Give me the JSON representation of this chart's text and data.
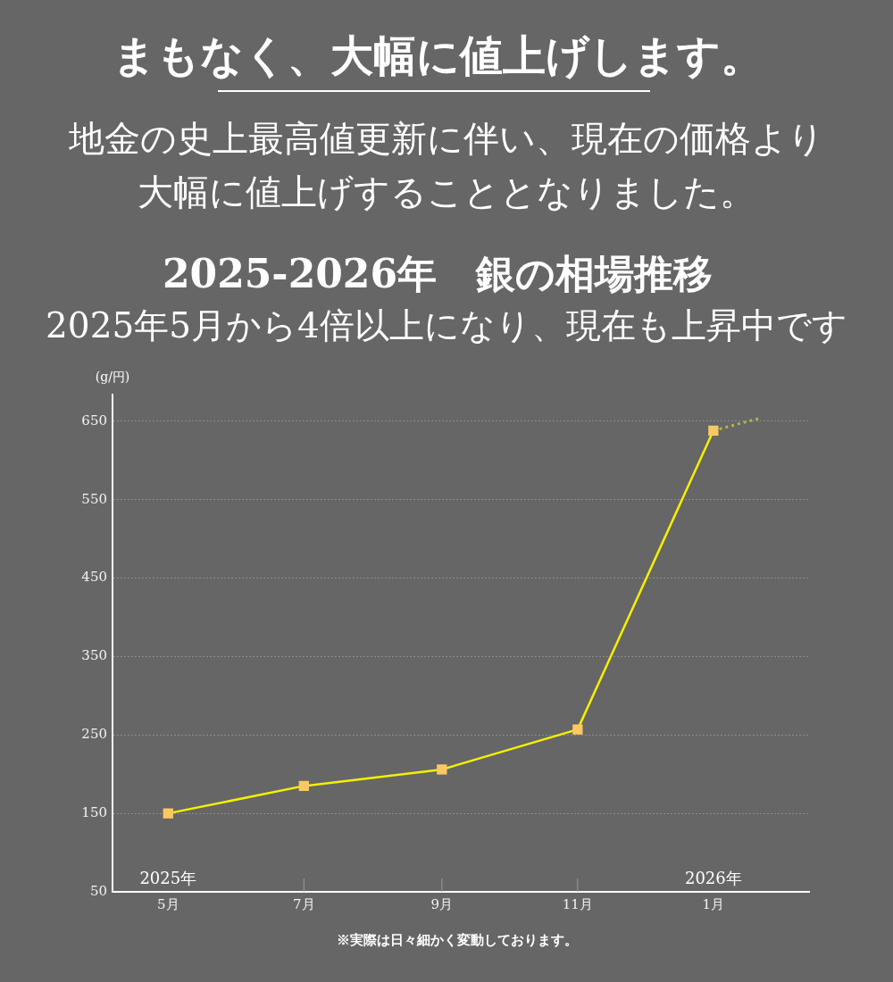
{
  "chart_data": {
    "type": "line",
    "title": "2025-2026年　銀の相場推移",
    "subtitle": "2025年5月から4倍以上になり、現在も上昇中です",
    "ylabel": "(g/円)",
    "annotations": [
      "まもなく、大幅に値上げします。",
      "地金の史上最高値更新に伴い、現在の価格より大幅に値上げすることとなりました。",
      "※実際は日々細かく変動しております。",
      "2025年",
      "2026年"
    ],
    "x": [
      "2025-05",
      "2025-07",
      "2025-09",
      "2025-11",
      "2026-01"
    ],
    "series": [
      {
        "color": "#f5f000",
        "colors": [
          "#fac863",
          "#fac863",
          "#fac863",
          "#fac863",
          "#fac863"
        ],
        "marker": "square",
        "values": [
          150,
          185,
          206,
          257,
          638
        ]
      },
      {
        "color": "#b3b545",
        "x": [
          "2026-01",
          "2026-01-22"
        ],
        "values": [
          638,
          654
        ],
        "marker": "none",
        "line_style": "dotted"
      }
    ],
    "xlim": [
      "2025-04-06",
      "2026-02-13"
    ],
    "xticks": [
      {
        "value": "2025-05",
        "label": "5月"
      },
      {
        "value": "2025-07",
        "label": "7月"
      },
      {
        "value": "2025-09",
        "label": "9月"
      },
      {
        "value": "2025-11",
        "label": "11月"
      },
      {
        "value": "2026-01",
        "label": "1月"
      }
    ],
    "ylim": [
      50,
      684
    ],
    "yticks": [
      50,
      150,
      250,
      350,
      450,
      550,
      650
    ],
    "grid": "y"
  }
}
